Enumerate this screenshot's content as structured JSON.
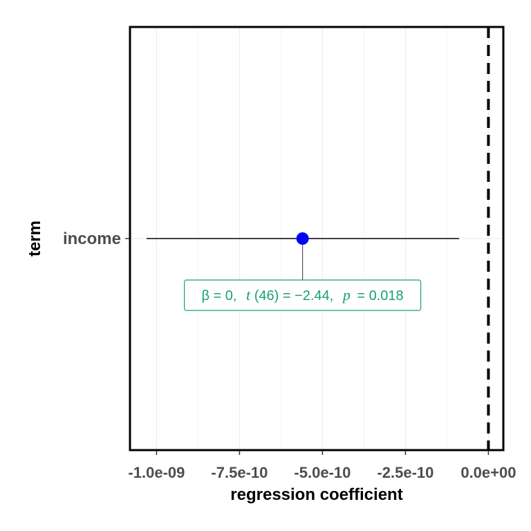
{
  "chart_data": {
    "type": "scatter",
    "title": "",
    "xlabel": "regression coefficient",
    "ylabel": "term",
    "xlim": [
      -1.08e-09,
      4.5e-11
    ],
    "x_ticks": [
      -1e-09,
      -7.5e-10,
      -5e-10,
      -2.5e-10,
      0.0
    ],
    "x_tick_labels": [
      "-1.0e-09",
      "-7.5e-10",
      "-5.0e-10",
      "-2.5e-10",
      "0.0e+00"
    ],
    "categories": [
      "income"
    ],
    "grid": true,
    "reference_line": {
      "x": 0,
      "style": "dashed"
    },
    "points": [
      {
        "term": "income",
        "estimate": -5.6e-10,
        "conf_low": -1.03e-09,
        "conf_high": -8.8e-11
      }
    ],
    "annotation": {
      "beta": "β = 0,",
      "t_symbol": "t",
      "t_df": "(46) = −2.44,",
      "p_symbol": "p",
      "p_value": "= 0.018"
    },
    "colors": {
      "point": "#0000ff",
      "label": "#1b9e77",
      "grid": "#ebebeb",
      "axis_text": "#4d4d4d"
    }
  }
}
